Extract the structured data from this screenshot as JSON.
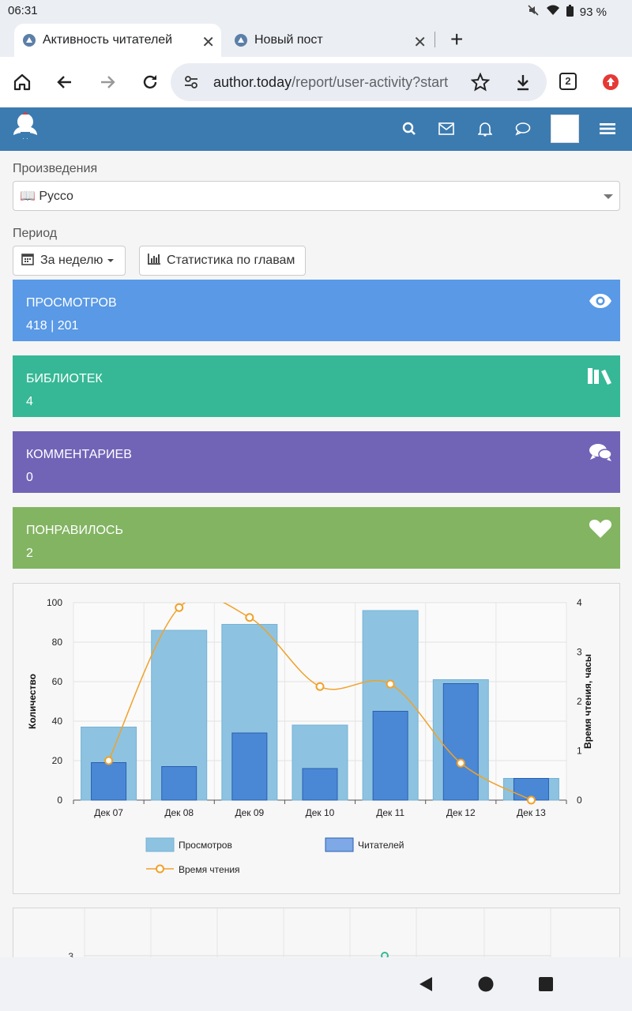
{
  "status": {
    "time": "06:31",
    "battery": "93 %"
  },
  "tabs": [
    {
      "title": "Активность читателей",
      "active": true
    },
    {
      "title": "Новый пост",
      "active": false
    }
  ],
  "toolbar": {
    "url_host": "author.today",
    "url_path": "/report/user-activity?start",
    "tab_count": "2"
  },
  "filters": {
    "works_label": "Произведения",
    "work_selected": "📖 Руссо",
    "period_label": "Период",
    "period_button": "За неделю",
    "chapters_button": "Статистика по главам"
  },
  "stats": [
    {
      "title": "ПРОСМОТРОВ",
      "value": "418 | 201",
      "color": "#5999e6"
    },
    {
      "title": "БИБЛИОТЕК",
      "value": "4",
      "color": "#36b896"
    },
    {
      "title": "КОММЕНТАРИЕВ",
      "value": "0",
      "color": "#7164b7"
    },
    {
      "title": "ПОНРАВИЛОСЬ",
      "value": "2",
      "color": "#83b462"
    }
  ],
  "chart_data": {
    "type": "bar",
    "categories": [
      "Дек 07",
      "Дек 08",
      "Дек 09",
      "Дек 10",
      "Дек 11",
      "Дек 12",
      "Дек 13"
    ],
    "series": [
      {
        "name": "Просмотров",
        "kind": "bar",
        "axis": "left",
        "color": "#8dc3e0",
        "values": [
          37,
          86,
          89,
          38,
          96,
          61,
          11
        ]
      },
      {
        "name": "Читателей",
        "kind": "bar",
        "axis": "left",
        "color": "#4a88d6",
        "values": [
          19,
          17,
          34,
          16,
          45,
          59,
          11
        ]
      },
      {
        "name": "Время чтения",
        "kind": "line",
        "axis": "right",
        "color": "#f0a12a",
        "values": [
          0.8,
          3.9,
          3.7,
          2.3,
          2.35,
          0.75,
          0
        ]
      }
    ],
    "ylabel": "Количество",
    "y2label": "Время чтения, часы",
    "ylim": [
      0,
      100
    ],
    "y2lim": [
      0,
      4
    ],
    "yticks": [
      "0",
      "20",
      "40",
      "60",
      "80",
      "100"
    ],
    "y2ticks": [
      "0",
      "1",
      "2",
      "3",
      "4"
    ],
    "grid": true,
    "legend": "bottom"
  },
  "chart2": {
    "tick": "3"
  }
}
